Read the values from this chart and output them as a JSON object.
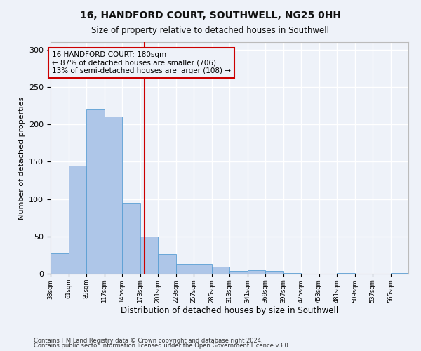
{
  "title1": "16, HANDFORD COURT, SOUTHWELL, NG25 0HH",
  "title2": "Size of property relative to detached houses in Southwell",
  "xlabel": "Distribution of detached houses by size in Southwell",
  "ylabel": "Number of detached properties",
  "footnote1": "Contains HM Land Registry data © Crown copyright and database right 2024.",
  "footnote2": "Contains public sector information licensed under the Open Government Licence v3.0.",
  "annotation_line1": "16 HANDFORD COURT: 180sqm",
  "annotation_line2": "← 87% of detached houses are smaller (706)",
  "annotation_line3": "13% of semi-detached houses are larger (108) →",
  "property_size": 180,
  "bin_edges": [
    33,
    61,
    89,
    117,
    145,
    173,
    201,
    229,
    257,
    285,
    313,
    341,
    369,
    397,
    425,
    453,
    481,
    509,
    537,
    565,
    593
  ],
  "bar_heights": [
    27,
    145,
    221,
    210,
    95,
    50,
    26,
    13,
    13,
    9,
    4,
    5,
    4,
    1,
    0,
    0,
    1,
    0,
    0,
    1
  ],
  "bar_color": "#aec6e8",
  "bar_edge_color": "#5a9fd4",
  "vline_color": "#cc0000",
  "vline_x": 180,
  "annotation_box_edge": "#cc0000",
  "background_color": "#eef2f9",
  "grid_color": "#ffffff",
  "ylim": [
    0,
    310
  ],
  "xlim": [
    33,
    593
  ]
}
